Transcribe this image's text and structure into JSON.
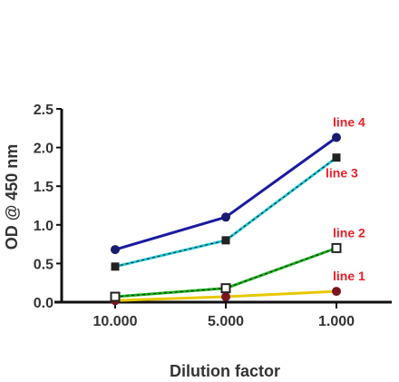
{
  "chart_data": {
    "type": "line",
    "categories": [
      "10.000",
      "5.000",
      "1.000"
    ],
    "xlabel": "Dilution factor",
    "ylabel": "OD @ 450 nm",
    "ylim": [
      0,
      2.5
    ],
    "yticks": [
      "0.0",
      "0.5",
      "1.0",
      "1.5",
      "2.0",
      "2.5"
    ],
    "grid": false,
    "legend": "inline labels at right end of each line",
    "label_color": "#e8202a",
    "series": [
      {
        "name": "line 1",
        "values": [
          0.02,
          0.07,
          0.14
        ],
        "color": "#e6c800",
        "marker": "circle",
        "marker_color": "#7a1620",
        "dashed": false,
        "label_pos": "above"
      },
      {
        "name": "line 2",
        "values": [
          0.07,
          0.18,
          0.7
        ],
        "color": "#17b317",
        "marker": "open-square",
        "marker_color": "#222222",
        "dashed": true,
        "label_pos": "above"
      },
      {
        "name": "line 3",
        "values": [
          0.46,
          0.8,
          1.87
        ],
        "color": "#20c8d8",
        "marker": "square",
        "marker_color": "#222222",
        "dashed": true,
        "label_pos": "below"
      },
      {
        "name": "line 4",
        "values": [
          0.68,
          1.1,
          2.13
        ],
        "color": "#1a1aa0",
        "marker": "circle",
        "marker_color": "#1a1a70",
        "dashed": false,
        "label_pos": "above"
      }
    ]
  }
}
